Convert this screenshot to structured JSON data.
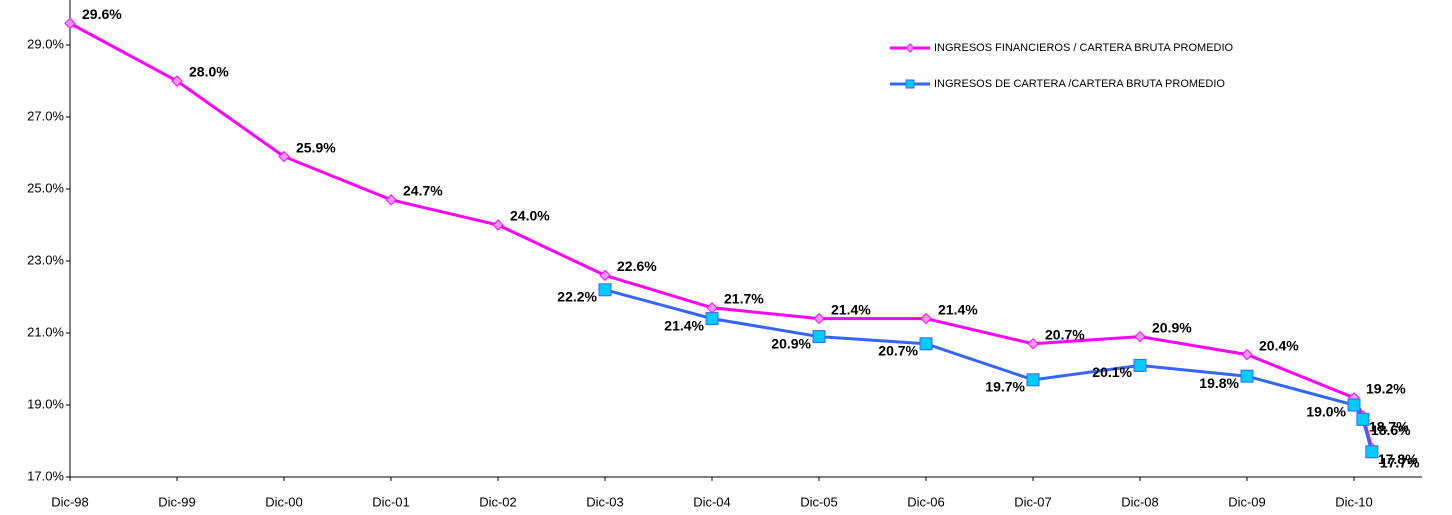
{
  "chart_data": {
    "type": "line",
    "categories": [
      "Dic-98",
      "Dic-99",
      "Dic-00",
      "Dic-01",
      "Dic-02",
      "Dic-03",
      "Dic-04",
      "Dic-05",
      "Dic-06",
      "Dic-07",
      "Dic-08",
      "Dic-09",
      "Dic-10",
      null,
      null
    ],
    "series": [
      {
        "name": "INGRESOS FINANCIEROS / CARTERA BRUTA PROMEDIO",
        "color": "#ff00ff",
        "marker_fill": "#ff99ff",
        "marker": "diamond",
        "values": [
          29.6,
          28.0,
          25.9,
          24.7,
          24.0,
          22.6,
          21.7,
          21.4,
          21.4,
          20.7,
          20.9,
          20.4,
          19.2,
          18.7,
          17.8
        ],
        "value_labels": [
          "29.6%",
          "28.0%",
          "25.9%",
          "24.7%",
          "24.0%",
          "22.6%",
          "21.7%",
          "21.4%",
          "21.4%",
          "20.7%",
          "20.9%",
          "20.4%",
          "19.2%",
          "18.7%",
          "17.8%"
        ]
      },
      {
        "name": "INGRESOS DE CARTERA /CARTERA BRUTA PROMEDIO",
        "color": "#3366ff",
        "marker_fill": "#00ccff",
        "marker": "square",
        "values": [
          null,
          null,
          null,
          null,
          null,
          22.2,
          21.4,
          20.9,
          20.7,
          19.7,
          20.1,
          19.8,
          19.0,
          18.6,
          17.7
        ],
        "value_labels": [
          null,
          null,
          null,
          null,
          null,
          "22.2%",
          "21.4%",
          "20.9%",
          "20.7%",
          "19.7%",
          "20.1%",
          "19.8%",
          "19.0%",
          "18.6%",
          "17.7%"
        ]
      }
    ],
    "ylim": [
      17,
      30.25
    ],
    "yticks": [
      {
        "value": 17,
        "label": "17.0%"
      },
      {
        "value": 19,
        "label": "19.0%"
      },
      {
        "value": 21,
        "label": "21.0%"
      },
      {
        "value": 23,
        "label": "23.0%"
      },
      {
        "value": 25,
        "label": "25.0%"
      },
      {
        "value": 27,
        "label": "27.0%"
      },
      {
        "value": 29,
        "label": "29.0%"
      }
    ],
    "grid": false,
    "legend": "top-right"
  }
}
